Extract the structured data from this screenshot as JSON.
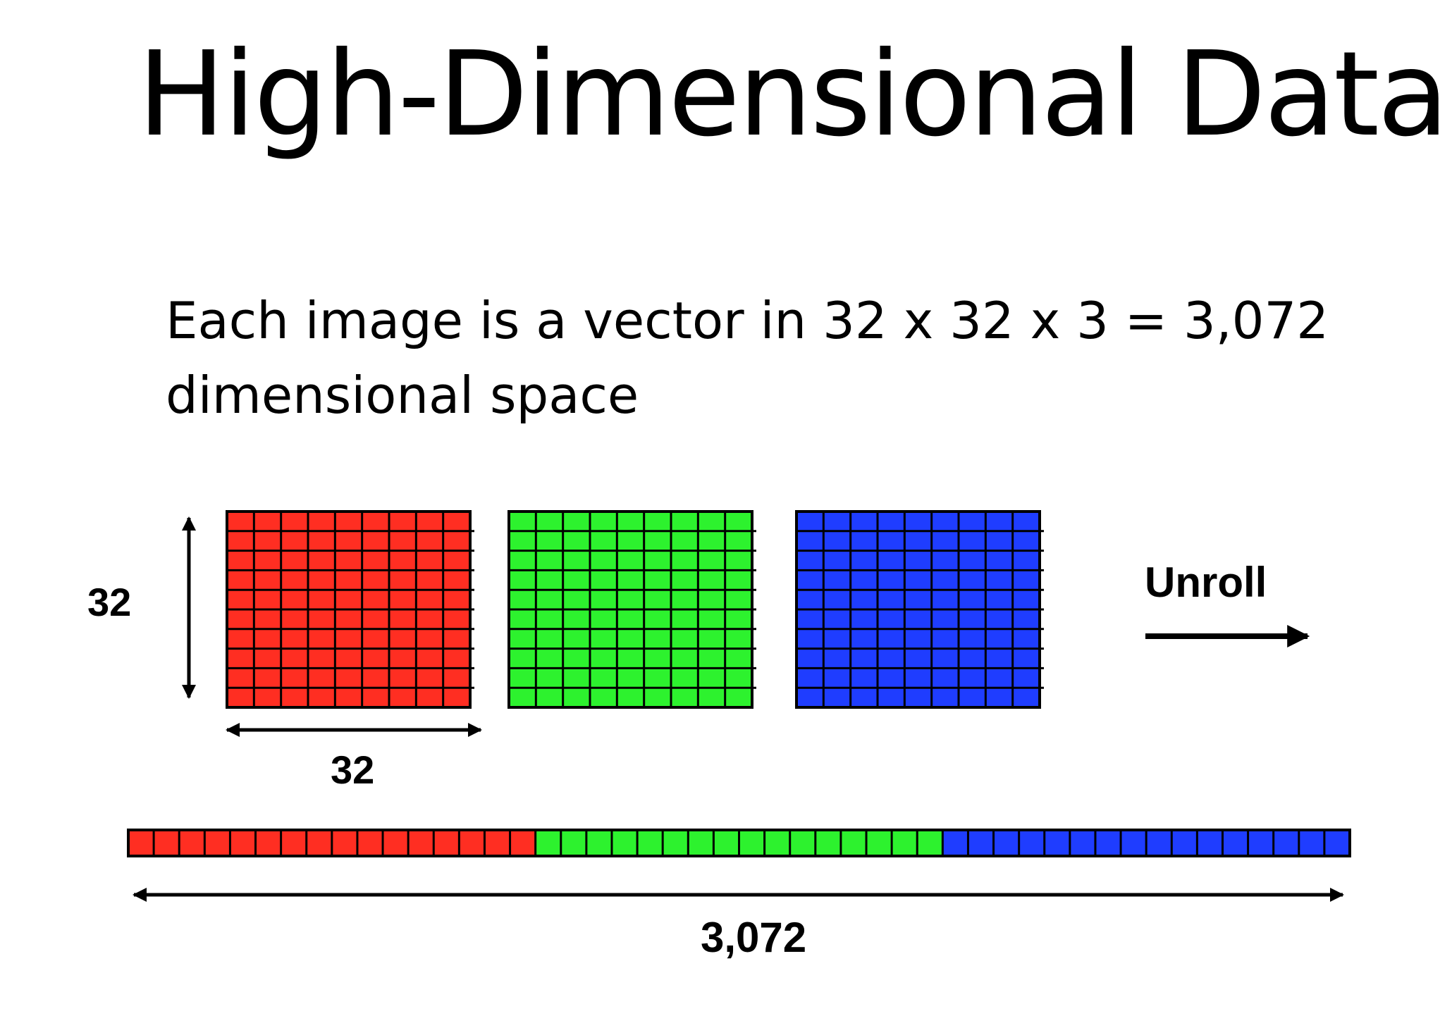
{
  "slide": {
    "title": "High-Dimensional Data",
    "subtitle_line1": "Each image is a vector in 32 x 32 x 3 = 3,072",
    "subtitle_line2": "dimensional space"
  },
  "diagram": {
    "height_label": "32",
    "width_label": "32",
    "unroll_label": "Unroll",
    "vector_length_label": "3,072",
    "channels": [
      {
        "name": "red",
        "color": "#ff2e22"
      },
      {
        "name": "green",
        "color": "#2df22e"
      },
      {
        "name": "blue",
        "color": "#1f3dff"
      }
    ],
    "grid_rows": 10,
    "grid_cols": 9,
    "vector_cells_per_channel": 16,
    "line_color": "#000000"
  }
}
